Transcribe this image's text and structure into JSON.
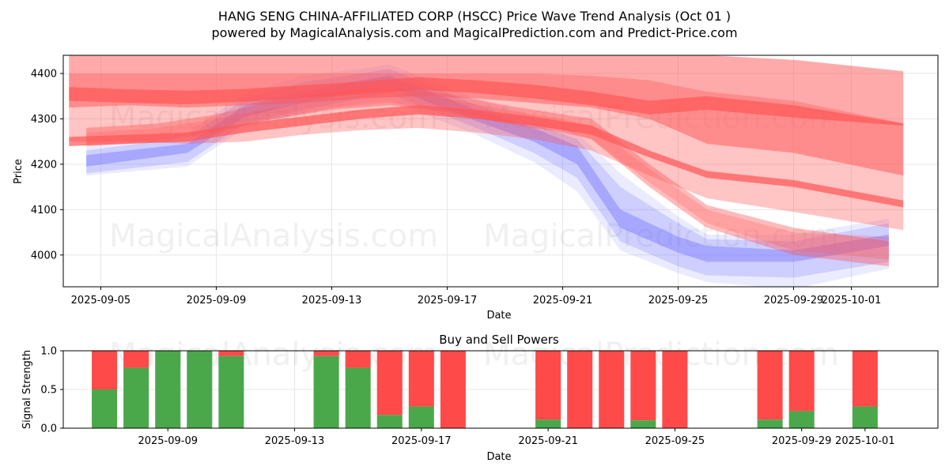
{
  "title_line1": "HANG SENG CHINA-AFFILIATED CORP (HSCC) Price Wave Trend Analysis (Oct 01 )",
  "title_line2": "powered by MagicalAnalysis.com and MagicalPrediction.com and Predict-Price.com",
  "watermarks": [
    "MagicalAnalysis.com",
    "MagicalPrediction.com"
  ],
  "colors": {
    "buy": "#4aa84a",
    "sell": "#ff4a4a",
    "blue_band": "#7777ff",
    "red_band": "#ff5555"
  },
  "chart_data": [
    {
      "type": "area",
      "xlabel": "Date",
      "ylabel": "Price",
      "xlim": [
        "2025-09-03.7",
        "2025-10-04.0"
      ],
      "ylim": [
        3930,
        4440
      ],
      "yticks": [
        4000,
        4100,
        4200,
        4300,
        4400
      ],
      "xticks": [
        {
          "date": "2025-09-05",
          "label": "2025-09-05"
        },
        {
          "date": "2025-09-09",
          "label": "2025-09-09"
        },
        {
          "date": "2025-09-13",
          "label": "2025-09-13"
        },
        {
          "date": "2025-09-17",
          "label": "2025-09-17"
        },
        {
          "date": "2025-09-21",
          "label": "2025-09-21"
        },
        {
          "date": "2025-09-25",
          "label": "2025-09-25"
        },
        {
          "date": "2025-09-29",
          "label": "2025-09-29"
        },
        {
          "date": "2025-10-01",
          "label": "2025-10-01"
        }
      ],
      "grid": true,
      "series": [
        {
          "name": "blue-wave-1",
          "color": "blue",
          "opacity": 0.45,
          "dates": [
            "2025-09-04.5",
            "2025-09-08",
            "2025-09-10",
            "2025-09-12",
            "2025-09-14",
            "2025-09-15",
            "2025-09-16",
            "2025-09-18",
            "2025-09-20",
            "2025-09-21.5",
            "2025-09-23",
            "2025-09-25",
            "2025-09-26",
            "2025-09-29",
            "2025-10-02.3"
          ],
          "upper": [
            4220,
            4245,
            4330,
            4360,
            4385,
            4395,
            4370,
            4320,
            4280,
            4240,
            4100,
            4040,
            4020,
            4010,
            4045
          ],
          "lower": [
            4195,
            4225,
            4305,
            4335,
            4360,
            4370,
            4345,
            4295,
            4250,
            4200,
            4060,
            4005,
            3985,
            3985,
            4020
          ]
        },
        {
          "name": "blue-wave-2",
          "color": "blue",
          "opacity": 0.25,
          "dates": [
            "2025-09-04.5",
            "2025-09-08",
            "2025-09-10",
            "2025-09-12",
            "2025-09-14",
            "2025-09-15",
            "2025-09-16",
            "2025-09-18",
            "2025-09-20",
            "2025-09-21.5",
            "2025-09-23",
            "2025-09-25",
            "2025-09-26",
            "2025-09-29",
            "2025-10-02.3"
          ],
          "upper": [
            4230,
            4260,
            4345,
            4380,
            4400,
            4410,
            4385,
            4330,
            4290,
            4255,
            4150,
            4070,
            4035,
            4030,
            4070
          ],
          "lower": [
            4180,
            4205,
            4290,
            4320,
            4345,
            4355,
            4330,
            4280,
            4225,
            4170,
            4030,
            3975,
            3955,
            3950,
            3985
          ]
        },
        {
          "name": "blue-wave-3",
          "color": "blue",
          "opacity": 0.15,
          "dates": [
            "2025-09-04.5",
            "2025-09-08",
            "2025-09-10",
            "2025-09-12",
            "2025-09-14",
            "2025-09-15",
            "2025-09-16",
            "2025-09-18",
            "2025-09-20",
            "2025-09-21.5",
            "2025-09-23",
            "2025-09-25",
            "2025-09-26",
            "2025-09-29",
            "2025-10-02.3"
          ],
          "upper": [
            4240,
            4270,
            4355,
            4395,
            4410,
            4420,
            4395,
            4345,
            4305,
            4270,
            4180,
            4085,
            4045,
            4045,
            4080
          ],
          "lower": [
            4175,
            4195,
            4280,
            4310,
            4335,
            4340,
            4315,
            4265,
            4205,
            4140,
            4010,
            3960,
            3940,
            3925,
            3970
          ]
        },
        {
          "name": "red-wave-short-1",
          "color": "red",
          "opacity": 0.4,
          "dates": [
            "2025-09-04.5",
            "2025-09-07",
            "2025-09-09",
            "2025-09-11",
            "2025-09-13",
            "2025-09-15",
            "2025-09-17",
            "2025-09-19",
            "2025-09-21",
            "2025-09-22",
            "2025-09-24",
            "2025-09-26",
            "2025-09-29",
            "2025-10-02.3"
          ],
          "upper": [
            4280,
            4290,
            4310,
            4340,
            4360,
            4370,
            4355,
            4330,
            4310,
            4300,
            4200,
            4110,
            4060,
            4030
          ],
          "lower": [
            4240,
            4250,
            4270,
            4300,
            4320,
            4330,
            4315,
            4290,
            4270,
            4255,
            4150,
            4060,
            4000,
            3975
          ]
        },
        {
          "name": "red-wave-short-2",
          "color": "red",
          "opacity": 0.25,
          "dates": [
            "2025-09-04.5",
            "2025-09-07",
            "2025-09-09",
            "2025-09-11",
            "2025-09-13",
            "2025-09-15",
            "2025-09-17",
            "2025-09-19",
            "2025-09-21",
            "2025-09-22",
            "2025-09-24",
            "2025-09-26",
            "2025-09-29",
            "2025-10-02.3"
          ],
          "upper": [
            4270,
            4280,
            4300,
            4325,
            4345,
            4360,
            4345,
            4320,
            4300,
            4285,
            4190,
            4100,
            4050,
            4040
          ],
          "lower": [
            4245,
            4255,
            4275,
            4300,
            4325,
            4335,
            4320,
            4295,
            4275,
            4255,
            4160,
            4070,
            4010,
            3990
          ]
        },
        {
          "name": "red-wave-long-1",
          "color": "red",
          "opacity": 0.5,
          "dates": [
            "2025-09-03.9",
            "2025-09-06",
            "2025-09-08",
            "2025-09-10",
            "2025-09-12",
            "2025-09-14",
            "2025-09-16",
            "2025-09-18",
            "2025-09-20",
            "2025-09-22",
            "2025-09-24",
            "2025-09-26",
            "2025-09-29",
            "2025-10-02.8"
          ],
          "upper": [
            4440,
            4440,
            4440,
            4440,
            4440,
            4440,
            4440,
            4440,
            4440,
            4440,
            4440,
            4440,
            4430,
            4405
          ],
          "lower": [
            4325,
            4330,
            4325,
            4330,
            4335,
            4345,
            4350,
            4345,
            4335,
            4325,
            4300,
            4245,
            4225,
            4175
          ]
        },
        {
          "name": "red-wave-long-2",
          "color": "red",
          "opacity": 0.35,
          "dates": [
            "2025-09-03.9",
            "2025-09-06",
            "2025-09-08",
            "2025-09-10",
            "2025-09-12",
            "2025-09-14",
            "2025-09-16",
            "2025-09-18",
            "2025-09-20",
            "2025-09-22",
            "2025-09-24",
            "2025-09-26",
            "2025-09-29",
            "2025-10-02.8"
          ],
          "upper": [
            4400,
            4400,
            4400,
            4400,
            4400,
            4400,
            4400,
            4400,
            4400,
            4395,
            4385,
            4360,
            4340,
            4290
          ],
          "lower": [
            4250,
            4250,
            4245,
            4250,
            4265,
            4275,
            4280,
            4270,
            4255,
            4230,
            4175,
            4125,
            4095,
            4055
          ]
        },
        {
          "name": "red-line-upper",
          "color": "red",
          "opacity": 0.7,
          "dates": [
            "2025-09-03.9",
            "2025-09-06",
            "2025-09-08",
            "2025-09-10",
            "2025-09-12",
            "2025-09-14",
            "2025-09-16",
            "2025-09-18",
            "2025-09-20",
            "2025-09-22",
            "2025-09-24",
            "2025-09-26",
            "2025-09-29",
            "2025-10-02.8"
          ],
          "upper": [
            4370,
            4365,
            4362,
            4366,
            4374,
            4382,
            4392,
            4385,
            4375,
            4360,
            4340,
            4350,
            4330,
            4290
          ],
          "lower": [
            4340,
            4335,
            4332,
            4338,
            4346,
            4354,
            4364,
            4357,
            4345,
            4330,
            4310,
            4320,
            4303,
            4285
          ]
        },
        {
          "name": "red-line-lower",
          "color": "red",
          "opacity": 0.7,
          "dates": [
            "2025-09-03.9",
            "2025-09-06",
            "2025-09-08",
            "2025-09-10",
            "2025-09-12",
            "2025-09-14",
            "2025-09-16",
            "2025-09-18",
            "2025-09-20",
            "2025-09-22",
            "2025-09-24",
            "2025-09-26",
            "2025-09-29",
            "2025-10-02.8"
          ],
          "upper": [
            4260,
            4265,
            4270,
            4290,
            4305,
            4320,
            4330,
            4320,
            4305,
            4285,
            4230,
            4185,
            4165,
            4120
          ],
          "lower": [
            4240,
            4245,
            4250,
            4270,
            4285,
            4300,
            4310,
            4300,
            4285,
            4265,
            4215,
            4170,
            4150,
            4105
          ]
        }
      ]
    },
    {
      "type": "bar",
      "title": "Buy and Sell Powers",
      "xlabel": "Date",
      "ylabel": "Signal Strength",
      "ylim": [
        0,
        1.0
      ],
      "yticks": [
        {
          "value": 0,
          "label": "0.0"
        },
        {
          "value": 0.5,
          "label": "0.5"
        },
        {
          "value": 1.0,
          "label": "1.0"
        }
      ],
      "xlim": [
        "2025-09-05.7",
        "2025-10-03.3"
      ],
      "xticks": [
        {
          "date": "2025-09-09",
          "label": "2025-09-09"
        },
        {
          "date": "2025-09-13",
          "label": "2025-09-13"
        },
        {
          "date": "2025-09-17",
          "label": "2025-09-17"
        },
        {
          "date": "2025-09-21",
          "label": "2025-09-21"
        },
        {
          "date": "2025-09-25",
          "label": "2025-09-25"
        },
        {
          "date": "2025-09-29",
          "label": "2025-09-29"
        },
        {
          "date": "2025-10-01",
          "label": "2025-10-01"
        }
      ],
      "grid": true,
      "bars": [
        {
          "date": "2025-09-07",
          "buy": 0.5
        },
        {
          "date": "2025-09-08",
          "buy": 0.78
        },
        {
          "date": "2025-09-09",
          "buy": 1.0
        },
        {
          "date": "2025-09-10",
          "buy": 1.0
        },
        {
          "date": "2025-09-11",
          "buy": 0.93
        },
        {
          "date": "2025-09-14",
          "buy": 0.93
        },
        {
          "date": "2025-09-15",
          "buy": 0.78
        },
        {
          "date": "2025-09-16",
          "buy": 0.17
        },
        {
          "date": "2025-09-17",
          "buy": 0.28
        },
        {
          "date": "2025-09-18",
          "buy": 0.0
        },
        {
          "date": "2025-09-21",
          "buy": 0.11
        },
        {
          "date": "2025-09-22",
          "buy": 0.0
        },
        {
          "date": "2025-09-23",
          "buy": 0.0
        },
        {
          "date": "2025-09-24",
          "buy": 0.1
        },
        {
          "date": "2025-09-25",
          "buy": 0.0
        },
        {
          "date": "2025-09-28",
          "buy": 0.11
        },
        {
          "date": "2025-09-29",
          "buy": 0.22
        },
        {
          "date": "2025-10-01",
          "buy": 0.28
        }
      ]
    }
  ]
}
